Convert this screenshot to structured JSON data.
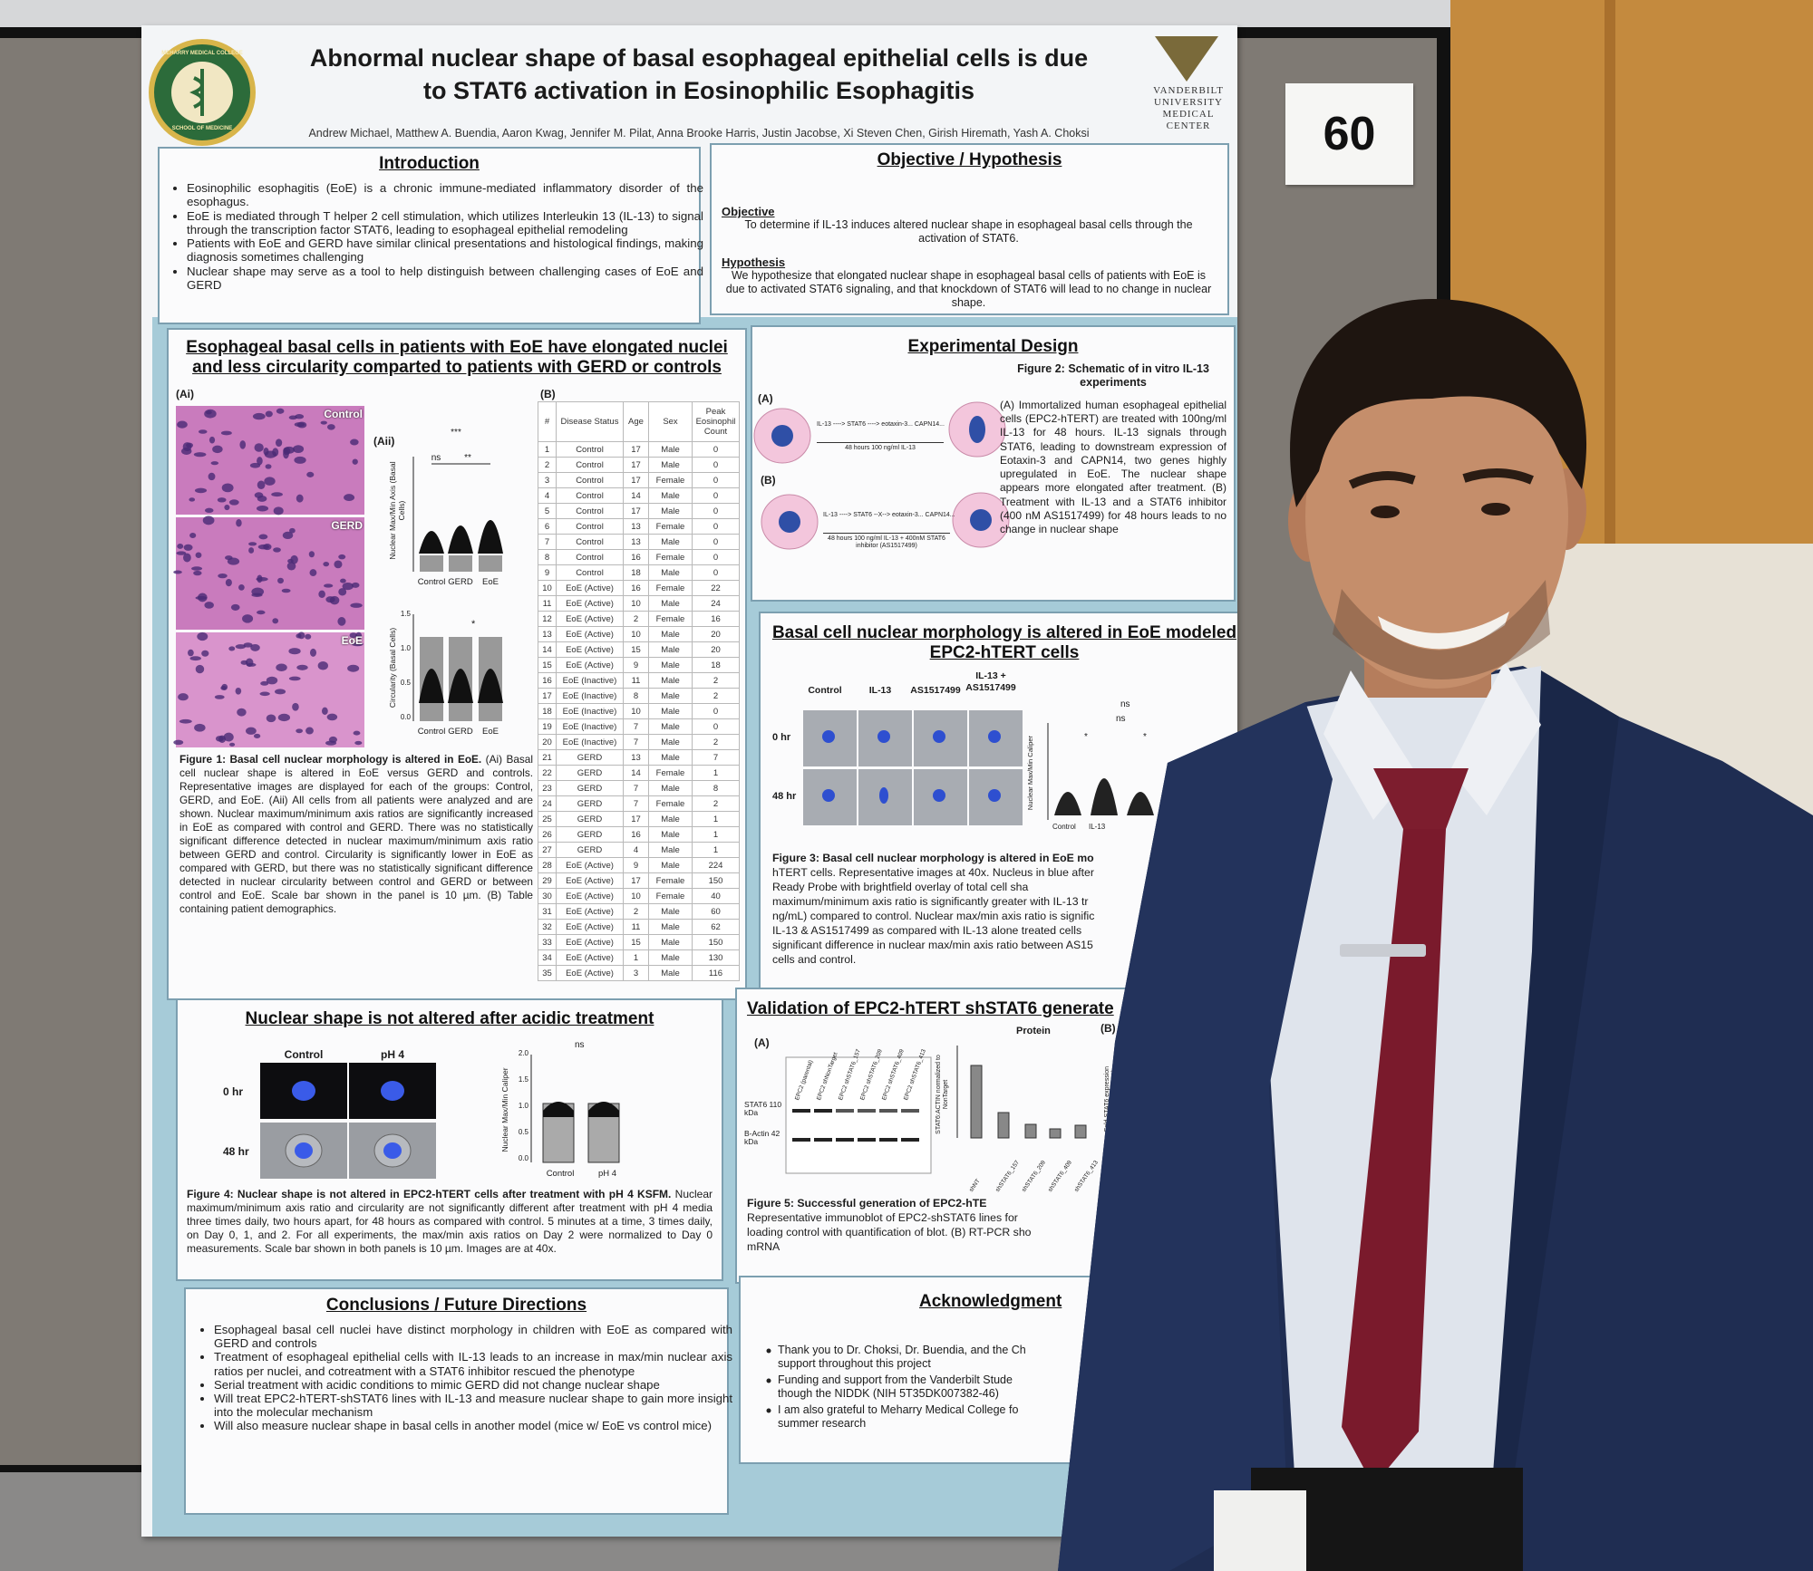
{
  "number_card": "60",
  "header": {
    "title_lines": [
      "Abnormal nuclear shape of basal esophageal epithelial cells is due",
      "to STAT6 activation in Eosinophilic Esophagitis"
    ],
    "authors": "Andrew Michael, Matthew A. Buendia, Aaron Kwag, Jennifer M. Pilat, Anna Brooke Harris, Justin Jacobse, Xi Steven Chen, Girish Hiremath, Yash A. Choksi",
    "logo_left_top": "MEHARRY MEDICAL COLLEGE",
    "logo_left_bottom": "SCHOOL OF MEDICINE",
    "logo_right": [
      "VANDERBILT",
      "UNIVERSITY",
      "MEDICAL",
      "CENTER"
    ]
  },
  "introduction": {
    "heading": "Introduction",
    "bullets": [
      "Eosinophilic esophagitis (EoE) is a chronic immune-mediated inflammatory disorder of the esophagus.",
      "EoE is mediated through T helper 2 cell stimulation, which utilizes Interleukin 13 (IL-13) to signal through the transcription factor STAT6, leading to esophageal epithelial remodeling",
      "Patients with EoE and GERD have similar clinical presentations and histological findings, making diagnosis sometimes challenging",
      "Nuclear shape may serve as a tool to help distinguish between challenging cases of EoE and GERD"
    ]
  },
  "objective": {
    "heading": "Objective / Hypothesis",
    "objective_label": "Objective",
    "objective_text": "To determine if IL-13 induces altered nuclear shape in esophageal basal cells through the activation of STAT6.",
    "hypothesis_label": "Hypothesis",
    "hypothesis_text": "We hypothesize that elongated nuclear shape in esophageal basal cells of patients with EoE is due to activated STAT6 signaling, and that knockdown of STAT6 will lead to no change in nuclear shape."
  },
  "figure1": {
    "heading": "Esophageal basal cells in patients with EoE have elongated nuclei and less circularity comparted to patients with GERD or controls",
    "panel_ai": "(Ai)",
    "panel_aii": "(Aii)",
    "panel_b": "(B)",
    "image_labels": [
      "Control",
      "GERD",
      "EoE"
    ],
    "chart_x_labels": [
      "Control",
      "GERD",
      "EoE"
    ],
    "chart_top_y_label": "Nuclear Max/Min Axis (Basal Cells)",
    "chart_top_sig": [
      "***",
      "ns",
      "**"
    ],
    "chart_bottom_y_label": "Circularity (Basal Cells)",
    "chart_bottom_ticks": [
      "1.5",
      "1.0",
      "0.5",
      "0.0"
    ],
    "chart_bottom_sig": "*",
    "caption_bold": "Figure 1: Basal cell nuclear morphology is altered in EoE.",
    "caption": " (Ai) Basal cell nuclear shape is altered in EoE versus GERD and controls. Representative images are displayed for each of the groups: Control, GERD, and EoE. (Aii) All cells from all patients were analyzed and are shown. Nuclear maximum/minimum axis ratios are significantly increased in EoE as compared with control and GERD. There was no statistically significant difference detected in nuclear maximum/minimum axis ratio between GERD and control. Circularity is significantly lower in EoE as compared with GERD, but there was no statistically significant difference detected in nuclear circularity between control and GERD or between control and EoE. Scale bar shown in the panel is 10 µm. (B) Table containing patient demographics.",
    "table": {
      "header": [
        "#",
        "Disease Status",
        "Age",
        "Sex",
        "Peak Eosinophil Count"
      ],
      "rows": [
        [
          "1",
          "Control",
          "17",
          "Male",
          "0"
        ],
        [
          "2",
          "Control",
          "17",
          "Male",
          "0"
        ],
        [
          "3",
          "Control",
          "17",
          "Female",
          "0"
        ],
        [
          "4",
          "Control",
          "14",
          "Male",
          "0"
        ],
        [
          "5",
          "Control",
          "17",
          "Male",
          "0"
        ],
        [
          "6",
          "Control",
          "13",
          "Female",
          "0"
        ],
        [
          "7",
          "Control",
          "13",
          "Male",
          "0"
        ],
        [
          "8",
          "Control",
          "16",
          "Female",
          "0"
        ],
        [
          "9",
          "Control",
          "18",
          "Male",
          "0"
        ],
        [
          "10",
          "EoE (Active)",
          "16",
          "Female",
          "22"
        ],
        [
          "11",
          "EoE (Active)",
          "10",
          "Male",
          "24"
        ],
        [
          "12",
          "EoE (Active)",
          "2",
          "Female",
          "16"
        ],
        [
          "13",
          "EoE (Active)",
          "10",
          "Male",
          "20"
        ],
        [
          "14",
          "EoE (Active)",
          "15",
          "Male",
          "20"
        ],
        [
          "15",
          "EoE (Active)",
          "9",
          "Male",
          "18"
        ],
        [
          "16",
          "EoE (Inactive)",
          "11",
          "Male",
          "2"
        ],
        [
          "17",
          "EoE (Inactive)",
          "8",
          "Male",
          "2"
        ],
        [
          "18",
          "EoE (Inactive)",
          "10",
          "Male",
          "0"
        ],
        [
          "19",
          "EoE (Inactive)",
          "7",
          "Male",
          "0"
        ],
        [
          "20",
          "EoE (Inactive)",
          "7",
          "Male",
          "2"
        ],
        [
          "21",
          "GERD",
          "13",
          "Male",
          "7"
        ],
        [
          "22",
          "GERD",
          "14",
          "Female",
          "1"
        ],
        [
          "23",
          "GERD",
          "7",
          "Male",
          "8"
        ],
        [
          "24",
          "GERD",
          "7",
          "Female",
          "2"
        ],
        [
          "25",
          "GERD",
          "17",
          "Male",
          "1"
        ],
        [
          "26",
          "GERD",
          "16",
          "Male",
          "1"
        ],
        [
          "27",
          "GERD",
          "4",
          "Male",
          "1"
        ],
        [
          "28",
          "EoE (Active)",
          "9",
          "Male",
          "224"
        ],
        [
          "29",
          "EoE (Active)",
          "17",
          "Female",
          "150"
        ],
        [
          "30",
          "EoE (Active)",
          "10",
          "Female",
          "40"
        ],
        [
          "31",
          "EoE (Active)",
          "2",
          "Male",
          "60"
        ],
        [
          "32",
          "EoE (Active)",
          "11",
          "Male",
          "62"
        ],
        [
          "33",
          "EoE (Active)",
          "15",
          "Male",
          "150"
        ],
        [
          "34",
          "EoE (Active)",
          "1",
          "Male",
          "130"
        ],
        [
          "35",
          "EoE (Active)",
          "3",
          "Male",
          "116"
        ]
      ]
    }
  },
  "experimental_design": {
    "heading": "Experimental Design",
    "panel_a": "(A)",
    "panel_b": "(B)",
    "pathway_a": "IL-13 ----> STAT6 ----> eotaxin-3... CAPN14...",
    "condition_a": "48 hours 100 ng/ml IL-13",
    "pathway_b": "IL-13 ----> STAT6 --X--> eotaxin-3... CAPN14...",
    "condition_b": "48 hours 100 ng/ml IL-13 + 400nM STAT6 inhibitor (AS1517499)",
    "figure_title": "Figure 2: Schematic of in vitro IL-13 experiments",
    "text": "(A) Immortalized human esophageal epithelial cells (EPC2-hTERT) are treated with 100ng/ml IL-13 for 48 hours. IL-13 signals through STAT6, leading to downstream expression of Eotaxin-3 and CAPN14, two genes highly upregulated in EoE. The nuclear shape appears more elongated after treatment. (B) Treatment with IL-13 and a STAT6 inhibitor (400 nM AS1517499) for 48 hours leads to no change in nuclear shape"
  },
  "figure3": {
    "heading": "Basal cell nuclear morphology is altered in EoE modeled EPC2-hTERT cells",
    "columns": [
      "Control",
      "IL-13",
      "AS1517499",
      "IL-13 + AS1517499"
    ],
    "rows": [
      "0 hr",
      "48 hr"
    ],
    "chart_y_label": "Nuclear Max/Min Caliper",
    "chart_sig": [
      "ns",
      "ns",
      "*",
      "*"
    ],
    "chart_x_labels": [
      "Control",
      "IL-13"
    ],
    "caption_lines": [
      "Figure 3: Basal cell nuclear morphology is altered in EoE mo",
      "hTERT cells. Representative images at 40x. Nucleus in blue after",
      "Ready Probe with brightfield overlay of total cell sha",
      "maximum/minimum axis ratio is significantly greater with IL-13 tr",
      "ng/mL) compared to control. Nuclear max/min axis ratio is signific",
      "IL-13 & AS1517499 as compared with IL-13 alone treated cells",
      "significant difference in nuclear max/min axis ratio between AS15",
      "cells and control."
    ]
  },
  "figure4": {
    "heading": "Nuclear shape is not altered after acidic treatment",
    "columns": [
      "Control",
      "pH 4"
    ],
    "rows": [
      "0 hr",
      "48 hr"
    ],
    "chart_y_label": "Nuclear Max/Min Caliper",
    "chart_ticks": [
      "2.0",
      "1.5",
      "1.0",
      "0.5",
      "0.0"
    ],
    "chart_sig": "ns",
    "chart_x_labels": [
      "Control",
      "pH 4"
    ],
    "caption_bold": "Figure 4: Nuclear shape is not altered in EPC2-hTERT cells after treatment with pH 4 KSFM.",
    "caption": " Nuclear maximum/minimum axis ratio and circularity are not significantly different after treatment with pH 4 media three times daily, two hours apart, for 48 hours as compared with control. 5 minutes at a time, 3 times daily, on Day 0, 1, and 2. For all experiments, the max/min axis ratios on Day 2 were normalized to Day 0 measurements. Scale bar shown in both panels is 10 µm. Images are at 40x."
  },
  "figure5": {
    "heading": "Validation of EPC2-hTERT  shSTAT6 generate",
    "panel_a": "(A)",
    "panel_b": "(B)",
    "protein_label": "Protein",
    "lanes": [
      "EPC2 (parental)",
      "EPC2 shNonTarget",
      "EPC2 shSTAT6_157",
      "EPC2 shSTAT6_209",
      "EPC2 shSTAT6_409",
      "EPC2 shSTAT6_413"
    ],
    "band_stat6": "STAT6 110 kDa",
    "band_actin": "B-Actin 42 kDa",
    "chart_y_label": "STAT6:ACTIN normalized to NonTarget",
    "chart_lanes": [
      "shNT",
      "shSTAT6_157",
      "shSTAT6_209",
      "shSTAT6_409",
      "shSTAT6_413"
    ],
    "chart_b_y_label": "Fold STAT6 expression (normalized to PPIA)",
    "caption_lines": [
      "Figure 5:  Successful  generation  of  EPC2-hTE",
      "Representative immunoblot of EPC2-shSTAT6 lines for",
      "loading control with quantification of blot. (B) RT-PCR sho",
      "mRNA"
    ]
  },
  "conclusions": {
    "heading": "Conclusions / Future Directions",
    "bullets": [
      "Esophageal basal cell nuclei have distinct morphology in children with EoE as compared with GERD and controls",
      "Treatment of esophageal epithelial cells with IL-13 leads to an increase in max/min nuclear axis ratios per nuclei, and cotreatment with a STAT6 inhibitor rescued the phenotype",
      "Serial treatment with acidic conditions to mimic GERD did not change nuclear shape",
      "Will treat EPC2-hTERT-shSTAT6 lines with IL-13 and measure nuclear shape to gain more insight into the molecular mechanism",
      "Will also measure nuclear shape in basal cells in another model (mice w/ EoE vs control mice)"
    ]
  },
  "acknowledgment": {
    "heading": "Acknowledgment",
    "bullets": [
      [
        "Thank you to Dr. Choksi, Dr. Buendia, and the Ch",
        "support throughout this project"
      ],
      [
        "Funding and support from the Vanderbilt Stude",
        "though the NIDDK (NIH 5T35DK007382-46)"
      ],
      [
        "I am also grateful to Meharry Medical College fo",
        "summer research"
      ]
    ]
  }
}
